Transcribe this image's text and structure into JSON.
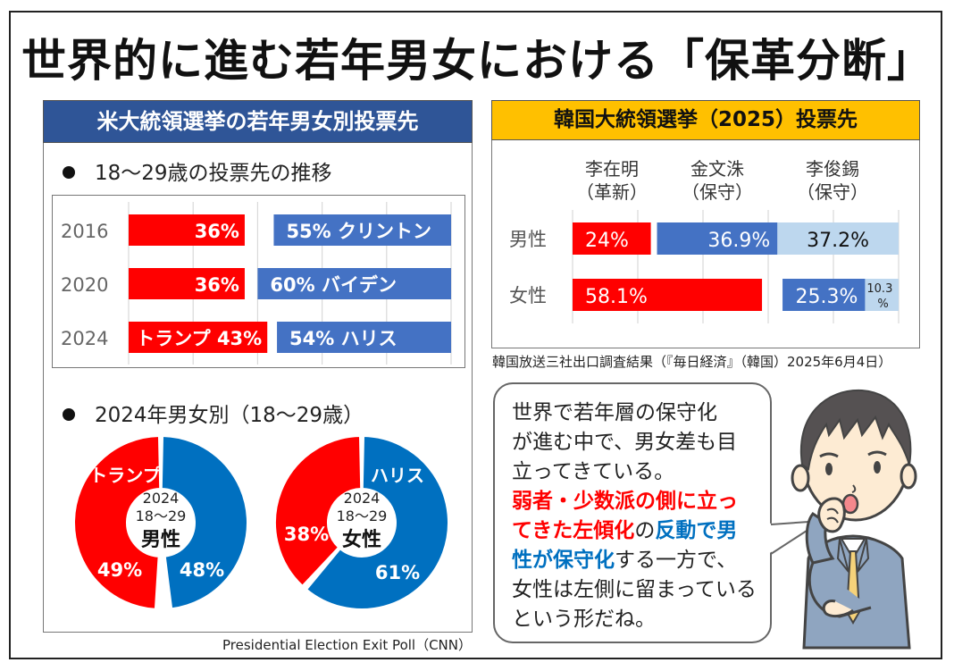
{
  "title": "世界的に進む若年男女における「保革分断」",
  "us_panel": {
    "header": "米大統領選挙の若年男女別投票先",
    "trend_heading": "18〜29歳の投票先の推移",
    "gender_heading": "2024年男女別（18〜29歳）",
    "source": "Presidential Election Exit Poll（CNN）"
  },
  "kr_panel": {
    "header": "韓国大統領選挙（2025）投票先",
    "candidates": [
      {
        "name": "李在明",
        "camp": "（革新）"
      },
      {
        "name": "金文洙",
        "camp": "（保守）"
      },
      {
        "name": "李俊錫",
        "camp": "（保守）"
      }
    ],
    "source": "韓国放送三社出口調査結果（『毎日経済』（韓国）2025年6月4日）"
  },
  "bubble": {
    "line1": "世界で若年層の保守化",
    "line2": "が進む中で、男女差も目",
    "line3": "立ってきている。",
    "red1": "弱者・少数派の側に立っ",
    "red2": "てきた左傾化",
    "mid1": "の",
    "blue1": "反動で男",
    "blue2": "性が保守化",
    "tail1": "する一方で、",
    "line7": "女性は左側に留まっている",
    "line8": "という形だね。"
  },
  "colors": {
    "republican": "#FF0000",
    "democrat_bar": "#4472C4",
    "democrat_donut": "#0070C0",
    "kr_conservative2": "#BDD7EE",
    "us_header": "#2F5597",
    "kr_header": "#FFC000"
  },
  "chart_data": [
    {
      "type": "bar",
      "title": "18〜29歳の投票先の推移",
      "stacked_layout": "diverging-from-edges",
      "xlim": [
        0,
        100
      ],
      "grid": true,
      "categories": [
        "2016",
        "2020",
        "2024"
      ],
      "series": [
        {
          "name": "Republican",
          "values": [
            36,
            36,
            43
          ],
          "labels": [
            "36%",
            "36%",
            "トランプ 43%"
          ],
          "color": "#FF0000",
          "anchor": "left"
        },
        {
          "name": "Democrat",
          "values": [
            55,
            60,
            54
          ],
          "labels": [
            "55% クリントン",
            "60% バイデン",
            "54% ハリス"
          ],
          "color": "#4472C4",
          "anchor": "right"
        }
      ]
    },
    {
      "type": "pie",
      "title": "2024 18〜29 男性",
      "center_label": [
        "2024",
        "18〜29",
        "男性"
      ],
      "slices": [
        {
          "name": "トランプ",
          "value": 49,
          "label": "49%",
          "color": "#FF0000"
        },
        {
          "name": "ハリス",
          "value": 48,
          "label": "48%",
          "color": "#0070C0"
        }
      ],
      "segment_label": "トランプ"
    },
    {
      "type": "pie",
      "title": "2024 18〜29 女性",
      "center_label": [
        "2024",
        "18〜29",
        "女性"
      ],
      "slices": [
        {
          "name": "トランプ",
          "value": 38,
          "label": "38%",
          "color": "#FF0000"
        },
        {
          "name": "ハリス",
          "value": 61,
          "label": "61%",
          "color": "#0070C0"
        }
      ],
      "segment_label": "ハリス"
    },
    {
      "type": "bar",
      "title": "韓国大統領選挙（2025）投票先",
      "xlim": [
        0,
        100
      ],
      "grid": true,
      "categories": [
        "男性",
        "女性"
      ],
      "series": [
        {
          "name": "李在明（革新）",
          "values": [
            24,
            58.1
          ],
          "labels": [
            "24%",
            "58.1%"
          ],
          "color": "#FF0000",
          "anchor": "left"
        },
        {
          "name": "金文洙（保守）",
          "values": [
            36.9,
            25.3
          ],
          "labels": [
            "36.9%",
            "25.3%"
          ],
          "color": "#4472C4",
          "anchor": "right"
        },
        {
          "name": "李俊錫（保守）",
          "values": [
            37.2,
            10.3
          ],
          "labels": [
            "37.2%",
            "10.3%"
          ],
          "color": "#BDD7EE",
          "anchor": "right"
        }
      ]
    }
  ]
}
